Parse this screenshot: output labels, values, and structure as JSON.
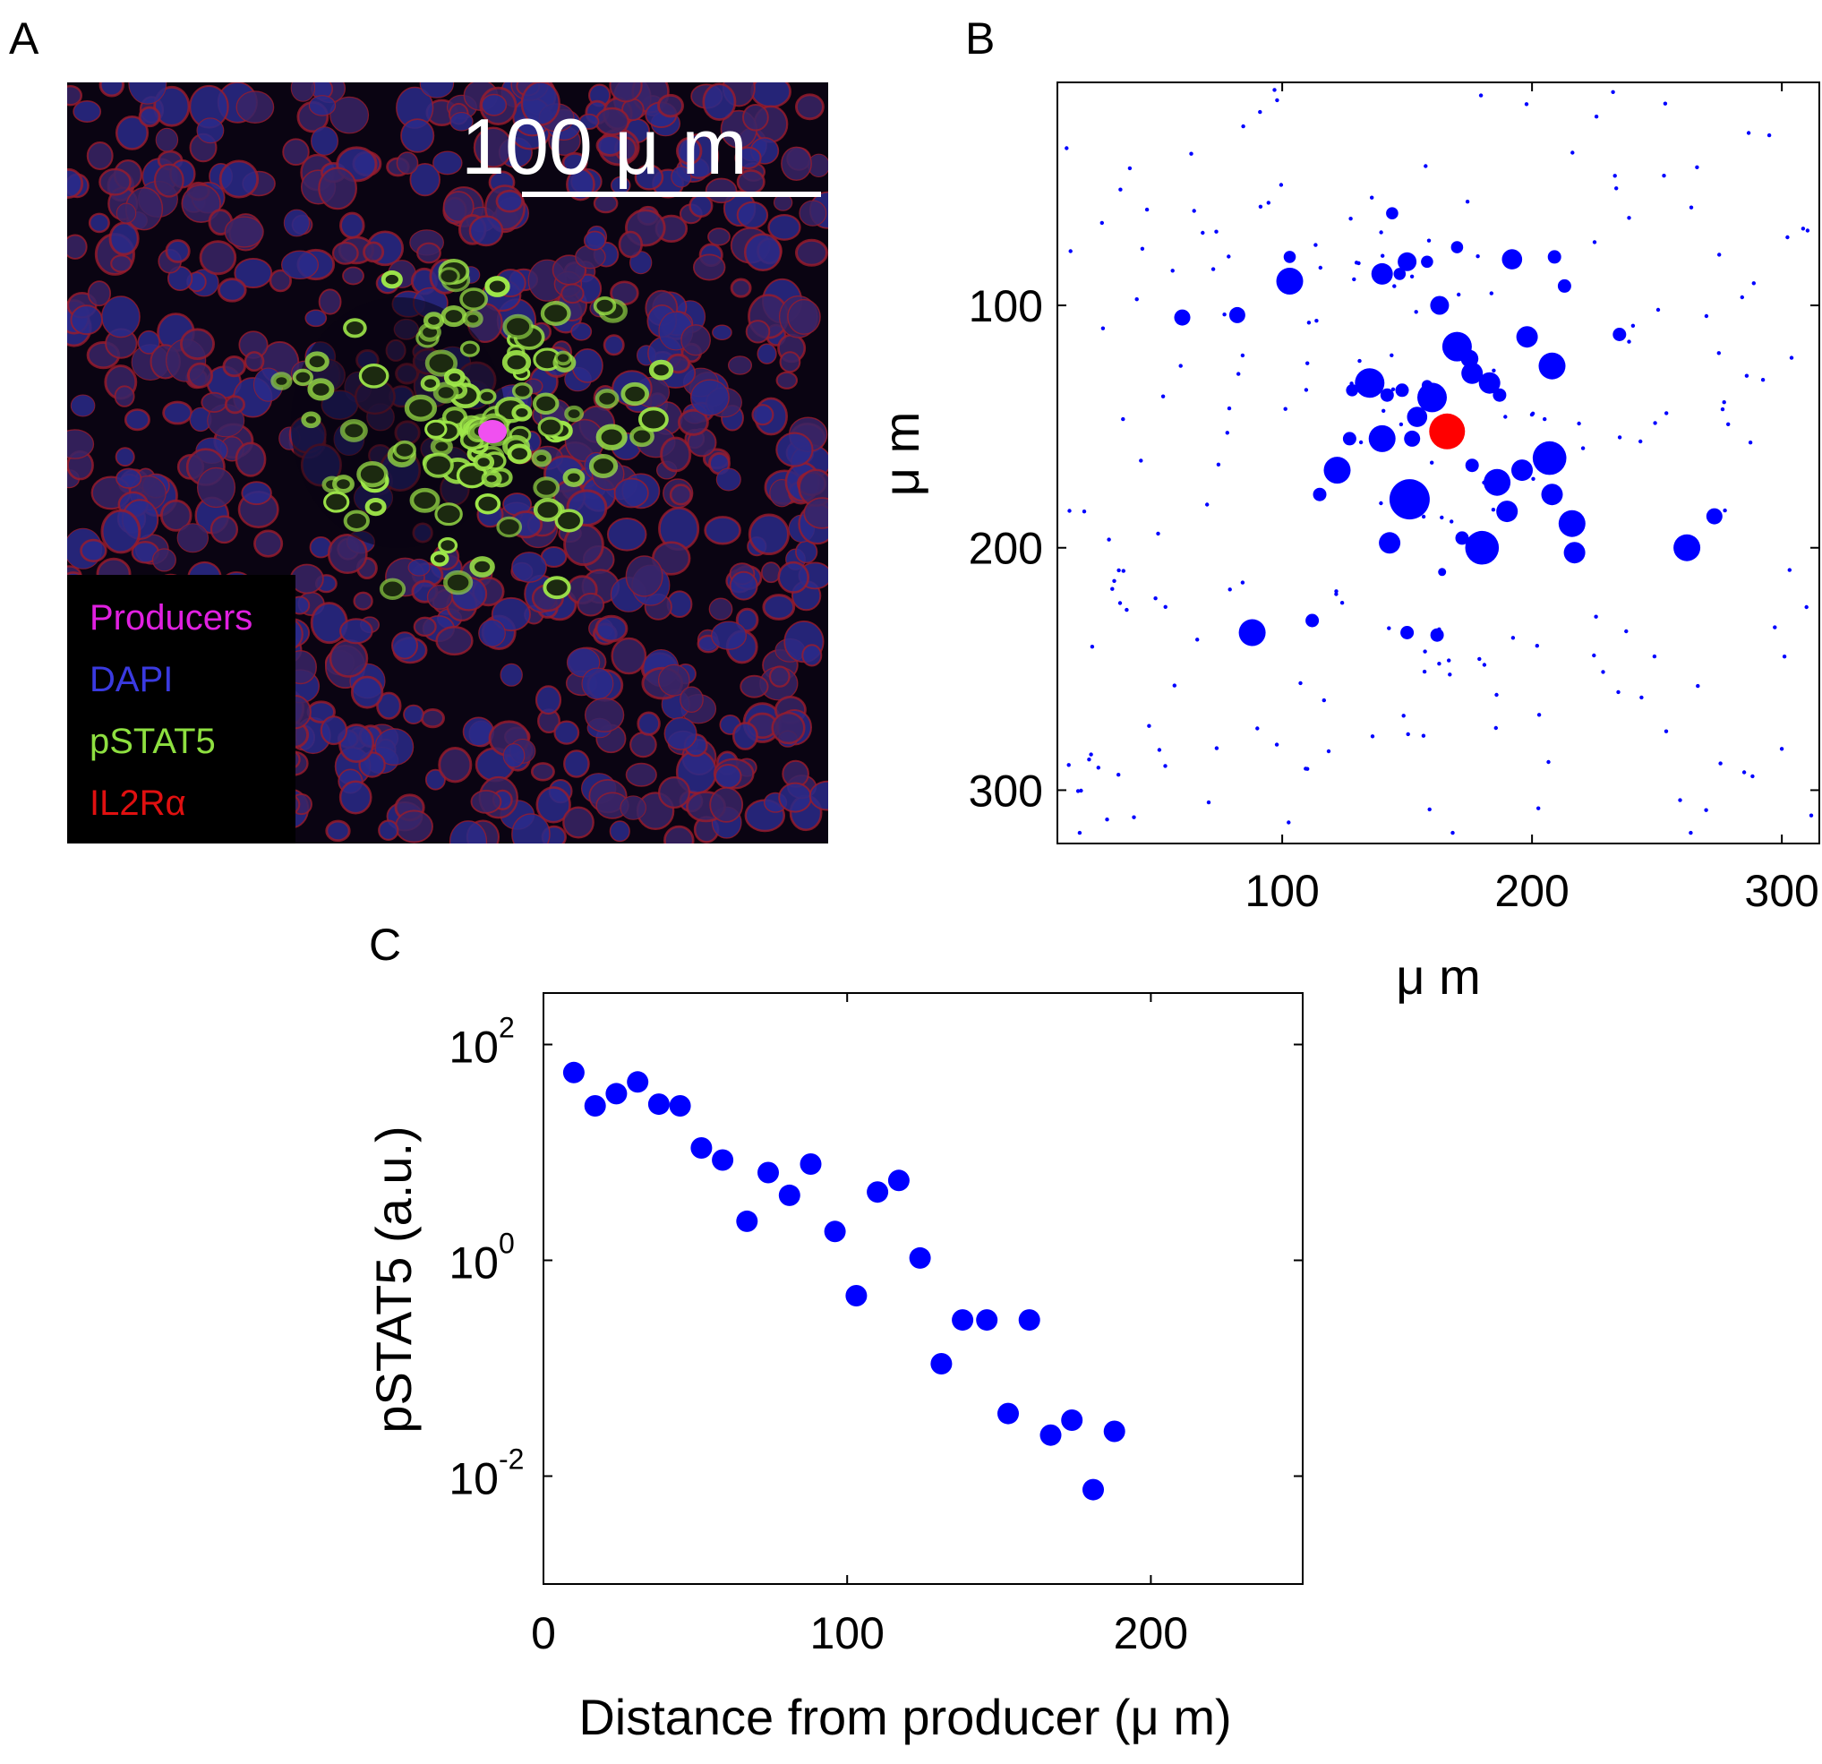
{
  "panels": {
    "a": {
      "letter": "A"
    },
    "b": {
      "letter": "B"
    },
    "c": {
      "letter": "C"
    }
  },
  "micrograph": {
    "scale_bar_label": "100 μ m",
    "legend": [
      {
        "label": "Producers",
        "color": "#e020e0"
      },
      {
        "label": "DAPI",
        "color": "#3a3ae0"
      },
      {
        "label": "pSTAT5",
        "color": "#8ee040"
      },
      {
        "label": "IL2Rα",
        "color": "#e01010"
      }
    ]
  },
  "chart_data": [
    {
      "panel": "B",
      "type": "scatter",
      "xlabel": "μ m",
      "ylabel": "μ m",
      "xlim": [
        10,
        315
      ],
      "ylim": [
        322,
        8
      ],
      "y_inverted": true,
      "xticks": [
        100,
        200,
        300
      ],
      "yticks": [
        100,
        200,
        300
      ],
      "grid": false,
      "producer": {
        "x": 166,
        "y": 152,
        "color": "#ff0000"
      },
      "series_color": "#0000ff",
      "cells": [
        [
          103,
          90,
          2
        ],
        [
          88,
          235,
          2
        ],
        [
          151,
          180,
          3
        ],
        [
          180,
          200,
          2.5
        ],
        [
          262,
          200,
          2
        ],
        [
          207,
          163,
          2.5
        ],
        [
          208,
          125,
          2
        ],
        [
          216,
          190,
          2
        ],
        [
          217,
          202,
          1.6
        ],
        [
          186,
          173,
          2
        ],
        [
          170,
          117,
          2.2
        ],
        [
          175,
          122,
          1.3
        ],
        [
          160,
          138,
          2.2
        ],
        [
          154,
          146,
          1.5
        ],
        [
          135,
          132,
          2.2
        ],
        [
          122,
          168,
          2
        ],
        [
          140,
          155,
          2
        ],
        [
          143,
          198,
          1.6
        ],
        [
          198,
          113,
          1.6
        ],
        [
          190,
          185,
          1.6
        ],
        [
          183,
          132,
          1.6
        ],
        [
          176,
          128,
          1.6
        ],
        [
          208,
          178,
          1.6
        ],
        [
          196,
          168,
          1.6
        ],
        [
          140,
          87,
          1.6
        ],
        [
          163,
          100,
          1.4
        ],
        [
          150,
          82,
          1.4
        ],
        [
          152,
          155,
          1.2
        ],
        [
          187,
          137,
          1
        ],
        [
          209,
          80,
          1
        ],
        [
          213,
          92,
          1
        ],
        [
          142,
          137,
          1
        ],
        [
          148,
          135,
          1
        ],
        [
          127,
          155,
          1
        ],
        [
          115,
          178,
          1
        ],
        [
          112,
          230,
          1
        ],
        [
          150,
          235,
          1
        ],
        [
          162,
          236,
          1
        ],
        [
          172,
          196,
          1
        ],
        [
          176,
          166,
          1
        ],
        [
          164,
          210,
          0.6
        ],
        [
          152,
          180,
          1
        ],
        [
          144,
          62,
          0.9
        ],
        [
          158,
          82,
          0.9
        ],
        [
          147,
          87,
          0.9
        ],
        [
          170,
          76,
          0.9
        ],
        [
          235,
          112,
          1
        ],
        [
          273,
          187,
          1.2
        ],
        [
          60,
          105,
          1.2
        ],
        [
          82,
          104,
          1.2
        ],
        [
          103,
          80,
          0.9
        ],
        [
          128,
          135,
          0.9
        ],
        [
          192,
          81,
          1.5
        ],
        [
          158,
          133,
          0.8
        ]
      ],
      "dot_style": "large dots sized by pSTAT5 level, tiny dots for low-level cells"
    },
    {
      "panel": "C",
      "type": "scatter",
      "xlabel": "Distance from producer  (μ m)",
      "ylabel": "pSTAT5 (a.u.)",
      "xlim": [
        0,
        250
      ],
      "ylim": [
        0.001,
        300
      ],
      "yscale": "log",
      "xticks": [
        0,
        100,
        200
      ],
      "yticks": [
        0.01,
        1,
        100
      ],
      "ytick_labels": [
        {
          "base": "10",
          "exp": "-2"
        },
        {
          "base": "10",
          "exp": "0"
        },
        {
          "base": "10",
          "exp": "2"
        }
      ],
      "grid": false,
      "color": "#0000ff",
      "x": [
        10,
        17,
        24,
        31,
        38,
        45,
        52,
        59,
        67,
        74,
        81,
        88,
        96,
        103,
        110,
        117,
        124,
        131,
        138,
        146,
        153,
        160,
        167,
        174,
        181,
        188
      ],
      "y": [
        55,
        27,
        35,
        45,
        28,
        27,
        11,
        8.5,
        2.3,
        6.5,
        4.0,
        7.8,
        1.85,
        0.47,
        4.3,
        5.5,
        1.05,
        0.11,
        0.28,
        0.28,
        0.038,
        0.28,
        0.024,
        0.033,
        0.0075,
        0.026
      ]
    }
  ]
}
